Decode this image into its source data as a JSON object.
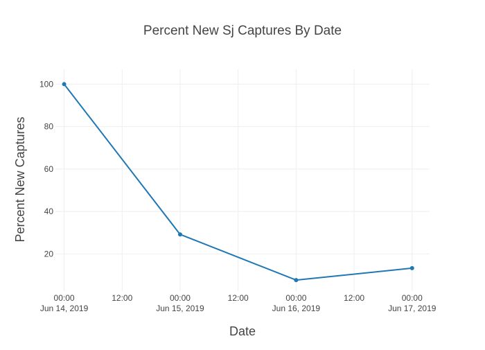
{
  "chart_data": {
    "type": "line",
    "title": "Percent New Sj Captures By Date",
    "xlabel": "Date",
    "ylabel": "Percent New Captures",
    "x_axis_type": "date",
    "xlim": [
      "2019-06-13T22:12",
      "2019-06-17T03:37"
    ],
    "ylim": [
      2.5,
      107
    ],
    "grid": true,
    "legend": "none",
    "x_ticks": [
      {
        "value": "2019-06-14T00:00",
        "label_time": "00:00",
        "label_date": "Jun 14, 2019"
      },
      {
        "value": "2019-06-14T12:00",
        "label_time": "12:00",
        "label_date": ""
      },
      {
        "value": "2019-06-15T00:00",
        "label_time": "00:00",
        "label_date": "Jun 15, 2019"
      },
      {
        "value": "2019-06-15T12:00",
        "label_time": "12:00",
        "label_date": ""
      },
      {
        "value": "2019-06-16T00:00",
        "label_time": "00:00",
        "label_date": "Jun 16, 2019"
      },
      {
        "value": "2019-06-16T12:00",
        "label_time": "12:00",
        "label_date": ""
      },
      {
        "value": "2019-06-17T00:00",
        "label_time": "00:00",
        "label_date": "Jun 17, 2019"
      }
    ],
    "y_ticks": [
      20,
      40,
      60,
      80,
      100
    ],
    "series": [
      {
        "color": "#1f77b4",
        "x": [
          "2019-06-14",
          "2019-06-15",
          "2019-06-16",
          "2019-06-17"
        ],
        "y": [
          100,
          29.2,
          7.7,
          13.3
        ]
      }
    ]
  }
}
